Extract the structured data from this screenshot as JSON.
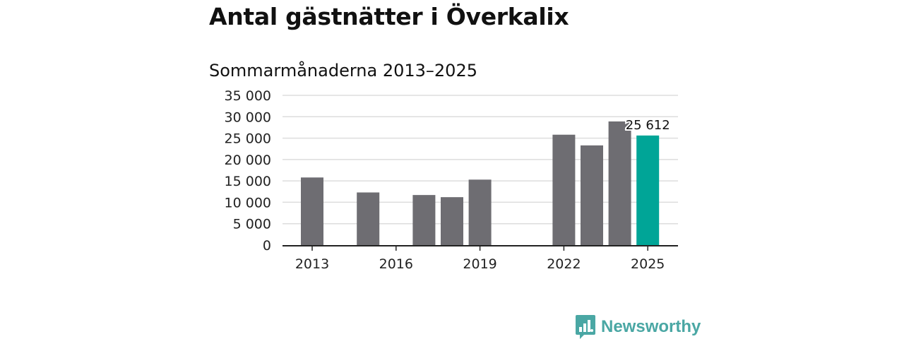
{
  "chart_data": {
    "type": "bar",
    "title": "Antal gästnätter i Överkalix",
    "subtitle": "Sommarmånaderna 2013–2025",
    "x": [
      2013,
      2014,
      2015,
      2016,
      2017,
      2018,
      2019,
      2020,
      2021,
      2022,
      2023,
      2024,
      2025
    ],
    "values": [
      15800,
      null,
      12300,
      null,
      11700,
      11200,
      15300,
      null,
      null,
      25800,
      23300,
      28900,
      25612
    ],
    "xticks": [
      2013,
      2016,
      2019,
      2022,
      2025
    ],
    "yticks": [
      "0",
      "5 000",
      "10 000",
      "15 000",
      "20 000",
      "25 000",
      "30 000",
      "35 000"
    ],
    "ylim": [
      0,
      35000
    ],
    "grid": true,
    "highlight": {
      "x": 2025,
      "label": "25 612"
    },
    "colors": {
      "bar": "#6e6d72",
      "highlight": "#00a597",
      "grid": "#dddddd",
      "axis": "#222222"
    }
  },
  "brand": {
    "name": "Newsworthy",
    "icon": "newsworthy-logo-icon",
    "color": "#4aa7a4"
  }
}
